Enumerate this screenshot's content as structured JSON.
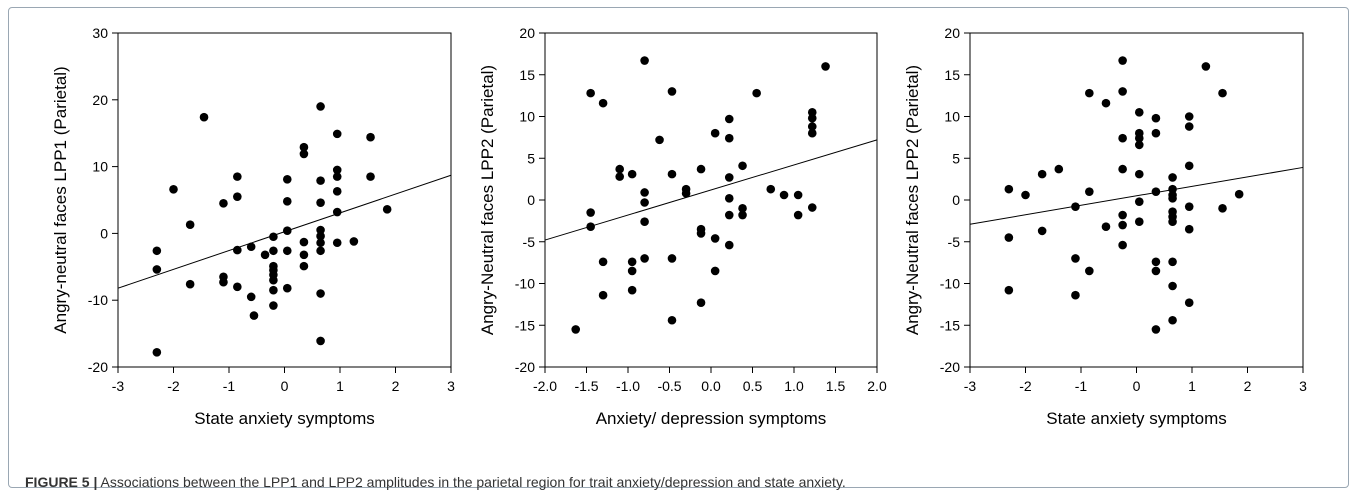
{
  "caption": {
    "label": "FIGURE 5 |",
    "text": " Associations between the LPP1 and LPP2 amplitudes in the parietal region for trait anxiety/depression and state anxiety."
  },
  "chart_data": [
    {
      "type": "scatter",
      "title": "",
      "xlabel": "State anxiety symptoms",
      "ylabel": "Angry-neutral faces LPP1 (Parietal)",
      "xlim": [
        -3,
        3
      ],
      "ylim": [
        -20,
        30
      ],
      "xticks": [
        "-3",
        "-2",
        "-1",
        "0",
        "1",
        "2",
        "3"
      ],
      "yticks": [
        "-20",
        "-10",
        "0",
        "10",
        "20",
        "30"
      ],
      "marker_color": "#000000",
      "fit_line": {
        "x": [
          -3,
          3
        ],
        "y": [
          -8.2,
          8.7
        ]
      },
      "points": [
        [
          -2.3,
          -17.8
        ],
        [
          -2.3,
          -2.6
        ],
        [
          -2.3,
          -5.4
        ],
        [
          -2.0,
          6.6
        ],
        [
          -1.7,
          1.3
        ],
        [
          -1.7,
          -7.6
        ],
        [
          -1.45,
          17.4
        ],
        [
          -1.1,
          4.5
        ],
        [
          -1.1,
          -6.5
        ],
        [
          -1.1,
          -7.3
        ],
        [
          -0.85,
          8.5
        ],
        [
          -0.85,
          5.5
        ],
        [
          -0.85,
          -2.5
        ],
        [
          -0.85,
          -8.0
        ],
        [
          -0.6,
          -2.0
        ],
        [
          -0.6,
          -9.5
        ],
        [
          -0.55,
          -12.3
        ],
        [
          -0.35,
          -3.2
        ],
        [
          -0.2,
          -0.5
        ],
        [
          -0.2,
          -2.6
        ],
        [
          -0.2,
          -4.9
        ],
        [
          -0.2,
          -5.5
        ],
        [
          -0.2,
          -6.2
        ],
        [
          -0.2,
          -7.0
        ],
        [
          -0.2,
          -8.5
        ],
        [
          -0.2,
          -10.8
        ],
        [
          0.05,
          8.1
        ],
        [
          0.05,
          4.8
        ],
        [
          0.05,
          0.4
        ],
        [
          0.05,
          -2.6
        ],
        [
          0.05,
          -8.2
        ],
        [
          0.35,
          12.9
        ],
        [
          0.35,
          11.9
        ],
        [
          0.35,
          -1.3
        ],
        [
          0.35,
          -3.2
        ],
        [
          0.35,
          -4.9
        ],
        [
          0.65,
          19.0
        ],
        [
          0.65,
          7.9
        ],
        [
          0.65,
          4.6
        ],
        [
          0.65,
          0.5
        ],
        [
          0.65,
          -0.4
        ],
        [
          0.65,
          -1.4
        ],
        [
          0.65,
          -2.6
        ],
        [
          0.65,
          -9.0
        ],
        [
          0.65,
          -16.1
        ],
        [
          0.95,
          14.9
        ],
        [
          0.95,
          9.5
        ],
        [
          0.95,
          8.5
        ],
        [
          0.95,
          6.3
        ],
        [
          0.95,
          3.2
        ],
        [
          0.95,
          -1.4
        ],
        [
          1.25,
          -1.2
        ],
        [
          1.55,
          14.4
        ],
        [
          1.55,
          8.5
        ],
        [
          1.85,
          3.6
        ]
      ]
    },
    {
      "type": "scatter",
      "title": "",
      "xlabel": "Anxiety/ depression symptoms",
      "ylabel": "Angry-Neutral faces LPP2 (Parietal)",
      "xlim": [
        -2.0,
        2.0
      ],
      "ylim": [
        -20,
        20
      ],
      "xticks": [
        "-2.0",
        "-1.5",
        "-1.0",
        "-0.5",
        "0.0",
        "0.5",
        "1.0",
        "1.5",
        "2.0"
      ],
      "yticks": [
        "-20",
        "-15",
        "-10",
        "-5",
        "0",
        "5",
        "10",
        "15",
        "20"
      ],
      "marker_color": "#000000",
      "fit_line": {
        "x": [
          -2.0,
          2.0
        ],
        "y": [
          -4.8,
          7.2
        ]
      },
      "points": [
        [
          -1.63,
          -15.5
        ],
        [
          -1.45,
          12.8
        ],
        [
          -1.45,
          -1.5
        ],
        [
          -1.45,
          -3.2
        ],
        [
          -1.3,
          11.6
        ],
        [
          -1.3,
          -7.4
        ],
        [
          -1.3,
          -11.4
        ],
        [
          -1.1,
          3.7
        ],
        [
          -1.1,
          2.8
        ],
        [
          -0.95,
          3.1
        ],
        [
          -0.95,
          -7.4
        ],
        [
          -0.95,
          -8.5
        ],
        [
          -0.95,
          -10.8
        ],
        [
          -0.8,
          16.7
        ],
        [
          -0.8,
          0.9
        ],
        [
          -0.8,
          -0.3
        ],
        [
          -0.8,
          -2.6
        ],
        [
          -0.8,
          -7.0
        ],
        [
          -0.62,
          7.2
        ],
        [
          -0.47,
          13.0
        ],
        [
          -0.47,
          3.1
        ],
        [
          -0.47,
          -7.0
        ],
        [
          -0.47,
          -14.4
        ],
        [
          -0.3,
          1.3
        ],
        [
          -0.3,
          0.8
        ],
        [
          -0.12,
          3.7
        ],
        [
          -0.12,
          -3.5
        ],
        [
          -0.12,
          -4.0
        ],
        [
          -0.12,
          -12.3
        ],
        [
          0.05,
          8.0
        ],
        [
          0.05,
          -4.6
        ],
        [
          0.05,
          -8.5
        ],
        [
          0.22,
          9.7
        ],
        [
          0.22,
          7.4
        ],
        [
          0.22,
          2.7
        ],
        [
          0.22,
          0.2
        ],
        [
          0.22,
          -1.8
        ],
        [
          0.22,
          -5.4
        ],
        [
          0.38,
          4.1
        ],
        [
          0.38,
          -1.0
        ],
        [
          0.38,
          -1.8
        ],
        [
          0.55,
          12.8
        ],
        [
          0.72,
          1.3
        ],
        [
          0.88,
          0.6
        ],
        [
          1.05,
          0.6
        ],
        [
          1.05,
          -1.8
        ],
        [
          1.22,
          10.5
        ],
        [
          1.22,
          9.8
        ],
        [
          1.22,
          8.8
        ],
        [
          1.22,
          8.0
        ],
        [
          1.22,
          -0.9
        ],
        [
          1.38,
          16.0
        ]
      ]
    },
    {
      "type": "scatter",
      "title": "",
      "xlabel": "State anxiety symptoms",
      "ylabel": "Angry-Neutral faces LPP2 (Parietal)",
      "xlim": [
        -3,
        3
      ],
      "ylim": [
        -20,
        20
      ],
      "xticks": [
        "-3",
        "-2",
        "-1",
        "0",
        "1",
        "2",
        "3"
      ],
      "yticks": [
        "-20",
        "-15",
        "-10",
        "-5",
        "0",
        "5",
        "10",
        "15",
        "20"
      ],
      "marker_color": "#000000",
      "fit_line": {
        "x": [
          -3,
          3
        ],
        "y": [
          -2.9,
          3.9
        ]
      },
      "points": [
        [
          -2.3,
          1.3
        ],
        [
          -2.3,
          -4.5
        ],
        [
          -2.3,
          -10.8
        ],
        [
          -2.0,
          0.6
        ],
        [
          -1.7,
          3.1
        ],
        [
          -1.7,
          -3.7
        ],
        [
          -1.4,
          3.7
        ],
        [
          -1.1,
          -0.8
        ],
        [
          -1.1,
          -7.0
        ],
        [
          -1.1,
          -11.4
        ],
        [
          -0.85,
          12.8
        ],
        [
          -0.85,
          1.0
        ],
        [
          -0.85,
          -8.5
        ],
        [
          -0.55,
          11.6
        ],
        [
          -0.55,
          -3.2
        ],
        [
          -0.25,
          16.7
        ],
        [
          -0.25,
          13.0
        ],
        [
          -0.25,
          7.4
        ],
        [
          -0.25,
          3.7
        ],
        [
          -0.25,
          -1.8
        ],
        [
          -0.25,
          -3.0
        ],
        [
          -0.25,
          -5.4
        ],
        [
          0.05,
          10.5
        ],
        [
          0.05,
          8.0
        ],
        [
          0.05,
          7.4
        ],
        [
          0.05,
          6.6
        ],
        [
          0.05,
          3.1
        ],
        [
          0.05,
          -0.2
        ],
        [
          0.05,
          -2.6
        ],
        [
          0.35,
          9.8
        ],
        [
          0.35,
          8.0
        ],
        [
          0.35,
          1.0
        ],
        [
          0.35,
          -7.4
        ],
        [
          0.35,
          -8.5
        ],
        [
          0.35,
          -15.5
        ],
        [
          0.65,
          2.7
        ],
        [
          0.65,
          1.3
        ],
        [
          0.65,
          0.6
        ],
        [
          0.65,
          0.2
        ],
        [
          0.65,
          -1.4
        ],
        [
          0.65,
          -2.0
        ],
        [
          0.65,
          -2.6
        ],
        [
          0.65,
          -7.4
        ],
        [
          0.65,
          -10.3
        ],
        [
          0.65,
          -14.4
        ],
        [
          0.95,
          10.0
        ],
        [
          0.95,
          8.8
        ],
        [
          0.95,
          4.1
        ],
        [
          0.95,
          -0.8
        ],
        [
          0.95,
          -3.5
        ],
        [
          0.95,
          -12.3
        ],
        [
          1.25,
          16.0
        ],
        [
          1.55,
          12.8
        ],
        [
          1.55,
          -1.0
        ],
        [
          1.85,
          0.7
        ]
      ]
    }
  ]
}
